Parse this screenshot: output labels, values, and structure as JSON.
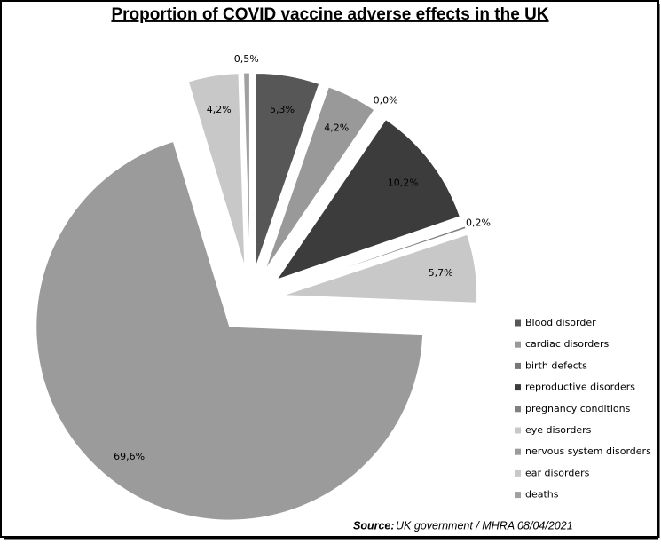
{
  "chart_data": {
    "type": "pie",
    "title": "Proportion of COVID vaccine adverse effects in the UK",
    "categories": [
      "Blood disorder",
      "cardiac disorders",
      "birth defects",
      "reproductive disorders",
      "pregnancy conditions",
      "eye disorders",
      "nervous system disorders",
      "ear disorders",
      "deaths"
    ],
    "values": [
      5.3,
      4.2,
      0.0,
      10.2,
      0.2,
      5.7,
      69.6,
      4.2,
      0.5
    ],
    "value_labels": [
      "5,3%",
      "4,2%",
      "0,0%",
      "10,2%",
      "0,2%",
      "5,7%",
      "69,6%",
      "4,2%",
      "0,5%"
    ],
    "colors": [
      "#575757",
      "#999999",
      "#777777",
      "#3c3c3c",
      "#808080",
      "#c8c8c8",
      "#9b9b9b",
      "#c8c8c8",
      "#a0a0a0"
    ],
    "legend": "right",
    "source": {
      "label": "Source:",
      "text": "UK government  / MHRA 08/04/2021"
    }
  }
}
